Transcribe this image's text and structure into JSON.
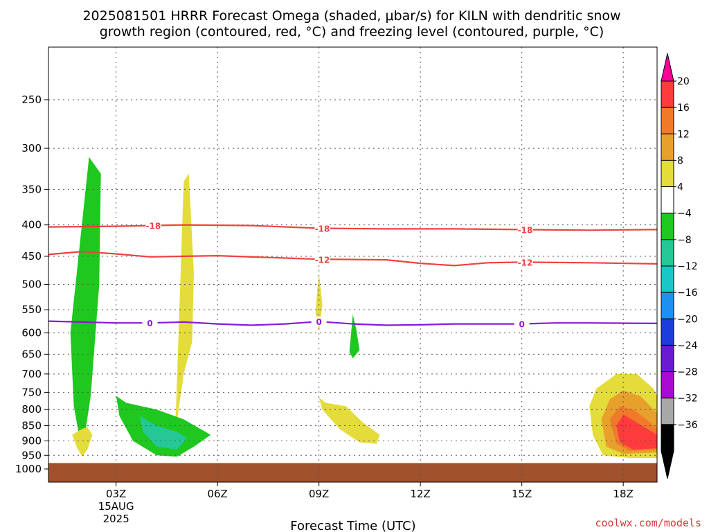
{
  "title_line1": "2025081501 HRRR Forecast Omega (shaded, μbar/s) for KILN with dendritic snow",
  "title_line2": "growth region (contoured, red, °C) and freezing level (contoured, purple, °C)",
  "credit": "coolwx.com/models",
  "chart_data": {
    "type": "heatmap",
    "xlabel": "Forecast Time (UTC)",
    "x_ticks": [
      {
        "label": "03Z",
        "sublabels": [
          "15AUG",
          "2025"
        ]
      },
      {
        "label": "06Z",
        "sublabels": []
      },
      {
        "label": "09Z",
        "sublabels": []
      },
      {
        "label": "12Z",
        "sublabels": []
      },
      {
        "label": "15Z",
        "sublabels": []
      },
      {
        "label": "18Z",
        "sublabels": []
      }
    ],
    "x_tick_hours": [
      3,
      6,
      9,
      12,
      15,
      18
    ],
    "xlim_hours": [
      1,
      19
    ],
    "ylabel": "",
    "y_ticks": [
      250,
      300,
      350,
      400,
      450,
      500,
      550,
      600,
      650,
      700,
      750,
      800,
      850,
      900,
      950,
      1000
    ],
    "ylim_hPa": [
      200,
      1000
    ],
    "y_scale": "log-pressure",
    "grid": true,
    "ground_top_hPa": 978,
    "colorbar": {
      "levels": [
        "20",
        "16",
        "12",
        "8",
        "4",
        "−4",
        "−8",
        "−12",
        "−16",
        "−20",
        "−24",
        "−28",
        "−32",
        "−36"
      ],
      "colors": [
        "#e8e8e8",
        "#ff0099",
        "#ff3b3b",
        "#f07a2a",
        "#e8a02c",
        "#e4dc3a",
        "#ffffff",
        "#1ec81e",
        "#24c896",
        "#18c8c8",
        "#1e90f0",
        "#1c3cdc",
        "#6a1ad0",
        "#a80ad0",
        "#a8a8a8",
        "#000000"
      ]
    },
    "omega_regions": [
      {
        "value_range": "-8 to -4",
        "color": "#1ec81e",
        "points": [
          [
            1.65,
            600
          ],
          [
            1.75,
            790
          ],
          [
            2.0,
            940
          ],
          [
            2.25,
            760
          ],
          [
            2.5,
            500
          ],
          [
            2.55,
            330
          ],
          [
            2.2,
            310
          ]
        ]
      },
      {
        "value_range": "4 to 8",
        "color": "#e4dc3a",
        "points": [
          [
            4.75,
            870
          ],
          [
            4.85,
            800
          ],
          [
            5.0,
            700
          ],
          [
            5.25,
            620
          ],
          [
            5.3,
            480
          ],
          [
            5.15,
            330
          ],
          [
            5.0,
            340
          ]
        ]
      },
      {
        "value_range": "4 to 8",
        "color": "#e4dc3a",
        "points": [
          [
            1.7,
            880
          ],
          [
            1.85,
            925
          ],
          [
            2.0,
            955
          ],
          [
            2.15,
            930
          ],
          [
            2.3,
            880
          ],
          [
            2.15,
            855
          ],
          [
            2.0,
            860
          ]
        ]
      },
      {
        "value_range": "4 to 8",
        "color": "#e4dc3a",
        "points": [
          [
            8.9,
            555
          ],
          [
            9.0,
            600
          ],
          [
            9.1,
            540
          ],
          [
            9.0,
            480
          ],
          [
            8.95,
            510
          ]
        ]
      },
      {
        "value_range": "-8 to -4",
        "color": "#1ec81e",
        "points": [
          [
            9.9,
            645
          ],
          [
            10.0,
            660
          ],
          [
            10.2,
            640
          ],
          [
            10.1,
            590
          ],
          [
            10.0,
            560
          ],
          [
            9.95,
            600
          ]
        ]
      },
      {
        "value_range": "-8 to -4",
        "color": "#1ec81e",
        "points": [
          [
            3.0,
            760
          ],
          [
            3.3,
            780
          ],
          [
            4.2,
            800
          ],
          [
            5.0,
            830
          ],
          [
            5.8,
            880
          ],
          [
            5.3,
            920
          ],
          [
            4.8,
            955
          ],
          [
            4.2,
            950
          ],
          [
            3.5,
            900
          ],
          [
            3.1,
            820
          ]
        ]
      },
      {
        "value_range": "-12 to -8",
        "color": "#24c896",
        "points": [
          [
            3.7,
            820
          ],
          [
            4.2,
            850
          ],
          [
            4.8,
            870
          ],
          [
            5.1,
            890
          ],
          [
            4.8,
            930
          ],
          [
            4.2,
            920
          ],
          [
            3.8,
            870
          ]
        ]
      },
      {
        "value_range": "4 to 8",
        "color": "#e4dc3a",
        "points": [
          [
            9.0,
            765
          ],
          [
            9.2,
            780
          ],
          [
            9.8,
            790
          ],
          [
            10.3,
            840
          ],
          [
            10.8,
            880
          ],
          [
            10.7,
            910
          ],
          [
            10.2,
            905
          ],
          [
            9.6,
            860
          ],
          [
            9.1,
            800
          ]
        ]
      },
      {
        "value_range": "4 to 8",
        "color": "#e4dc3a",
        "points": [
          [
            17.0,
            790
          ],
          [
            17.2,
            740
          ],
          [
            17.8,
            700
          ],
          [
            18.4,
            700
          ],
          [
            18.9,
            740
          ],
          [
            19.0,
            760
          ],
          [
            19.0,
            960
          ],
          [
            18.2,
            960
          ],
          [
            17.4,
            950
          ],
          [
            17.1,
            880
          ]
        ]
      },
      {
        "value_range": "8 to 12",
        "color": "#e8a02c",
        "points": [
          [
            17.35,
            830
          ],
          [
            17.6,
            770
          ],
          [
            18.0,
            745
          ],
          [
            18.5,
            760
          ],
          [
            19.0,
            810
          ],
          [
            19.0,
            940
          ],
          [
            18.0,
            945
          ],
          [
            17.5,
            920
          ]
        ]
      },
      {
        "value_range": "12 to 16",
        "color": "#f07a2a",
        "points": [
          [
            17.6,
            830
          ],
          [
            17.9,
            790
          ],
          [
            18.3,
            800
          ],
          [
            18.8,
            840
          ],
          [
            19.0,
            860
          ],
          [
            19.0,
            930
          ],
          [
            18.2,
            935
          ],
          [
            17.8,
            910
          ]
        ]
      },
      {
        "value_range": "16 to 20",
        "color": "#ff3b3b",
        "points": [
          [
            17.8,
            850
          ],
          [
            18.0,
            815
          ],
          [
            18.4,
            840
          ],
          [
            19.0,
            880
          ],
          [
            19.0,
            925
          ],
          [
            18.3,
            930
          ],
          [
            17.9,
            905
          ]
        ]
      }
    ],
    "contours": [
      {
        "name": "-18",
        "color": "#f04040",
        "label_text": "-18",
        "label_hours": [
          4.1,
          9.1,
          15.1
        ],
        "points": [
          [
            1,
            403
          ],
          [
            3,
            402
          ],
          [
            5,
            400
          ],
          [
            7,
            401
          ],
          [
            9,
            405
          ],
          [
            11,
            406
          ],
          [
            13,
            406
          ],
          [
            15,
            407
          ],
          [
            17,
            408
          ],
          [
            19,
            407
          ]
        ]
      },
      {
        "name": "-12",
        "color": "#f04040",
        "label_text": "-12",
        "label_hours": [
          9.1,
          15.1
        ],
        "points": [
          [
            1,
            447
          ],
          [
            2,
            442
          ],
          [
            3,
            446
          ],
          [
            4,
            451
          ],
          [
            6,
            449
          ],
          [
            8,
            453
          ],
          [
            9,
            455
          ],
          [
            11,
            456
          ],
          [
            12,
            462
          ],
          [
            13,
            466
          ],
          [
            14,
            461
          ],
          [
            15,
            460
          ],
          [
            17,
            461
          ],
          [
            19,
            463
          ]
        ]
      },
      {
        "name": "0",
        "color": "#8a18d8",
        "label_text": "0",
        "label_hours": [
          4.0,
          9.0,
          15.0
        ],
        "points": [
          [
            1,
            574
          ],
          [
            2,
            576
          ],
          [
            3,
            578
          ],
          [
            4,
            578
          ],
          [
            5,
            576
          ],
          [
            6,
            580
          ],
          [
            7,
            583
          ],
          [
            8,
            580
          ],
          [
            9,
            575
          ],
          [
            10,
            580
          ],
          [
            11,
            583
          ],
          [
            12,
            582
          ],
          [
            13,
            580
          ],
          [
            14,
            580
          ],
          [
            15,
            580
          ],
          [
            16,
            578
          ],
          [
            17,
            578
          ],
          [
            19,
            579
          ]
        ]
      }
    ]
  }
}
